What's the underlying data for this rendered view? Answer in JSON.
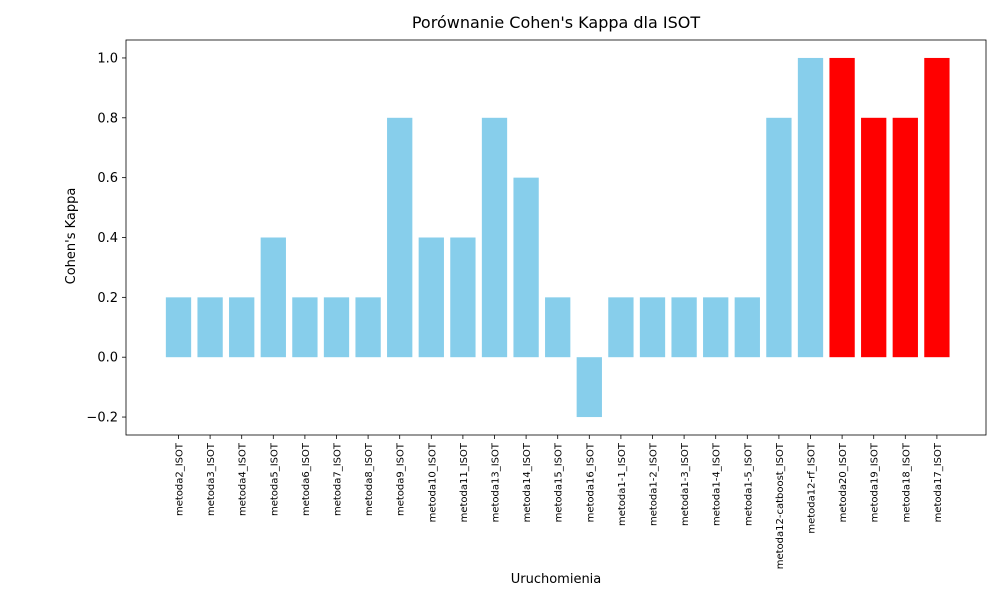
{
  "chart_data": {
    "type": "bar",
    "title": "Porównanie Cohen's Kappa dla ISOT",
    "xlabel": "Uruchomienia",
    "ylabel": "Cohen's Kappa",
    "ylim": [
      -0.26,
      1.06
    ],
    "yticks": [
      -0.2,
      0.0,
      0.2,
      0.4,
      0.6,
      0.8,
      1.0
    ],
    "ytick_labels": [
      "−0.2",
      "0.0",
      "0.2",
      "0.4",
      "0.6",
      "0.8",
      "1.0"
    ],
    "grid": false,
    "legend": false,
    "categories": [
      "metoda2_ISOT",
      "metoda3_ISOT",
      "metoda4_ISOT",
      "metoda5_ISOT",
      "metoda6_ISOT",
      "metoda7_ISOT",
      "metoda8_ISOT",
      "metoda9_ISOT",
      "metoda10_ISOT",
      "metoda11_ISOT",
      "metoda13_ISOT",
      "metoda14_ISOT",
      "metoda15_ISOT",
      "metoda16_ISOT",
      "metoda1-1_ISOT",
      "metoda1-2_ISOT",
      "metoda1-3_ISOT",
      "metoda1-4_ISOT",
      "metoda1-5_ISOT",
      "metoda12-catboost_ISOT",
      "metoda12-rf_ISOT",
      "metoda20_ISOT",
      "metoda19_ISOT",
      "metoda18_ISOT",
      "metoda17_ISOT"
    ],
    "values": [
      0.2,
      0.2,
      0.2,
      0.4,
      0.2,
      0.2,
      0.2,
      0.8,
      0.4,
      0.4,
      0.8,
      0.6,
      0.2,
      -0.2,
      0.2,
      0.2,
      0.2,
      0.2,
      0.2,
      0.8,
      1.0,
      1.0,
      0.8,
      0.8,
      1.0
    ],
    "colors": [
      "#87ceeb",
      "#87ceeb",
      "#87ceeb",
      "#87ceeb",
      "#87ceeb",
      "#87ceeb",
      "#87ceeb",
      "#87ceeb",
      "#87ceeb",
      "#87ceeb",
      "#87ceeb",
      "#87ceeb",
      "#87ceeb",
      "#87ceeb",
      "#87ceeb",
      "#87ceeb",
      "#87ceeb",
      "#87ceeb",
      "#87ceeb",
      "#87ceeb",
      "#87ceeb",
      "#ff0000",
      "#ff0000",
      "#ff0000",
      "#ff0000"
    ]
  }
}
